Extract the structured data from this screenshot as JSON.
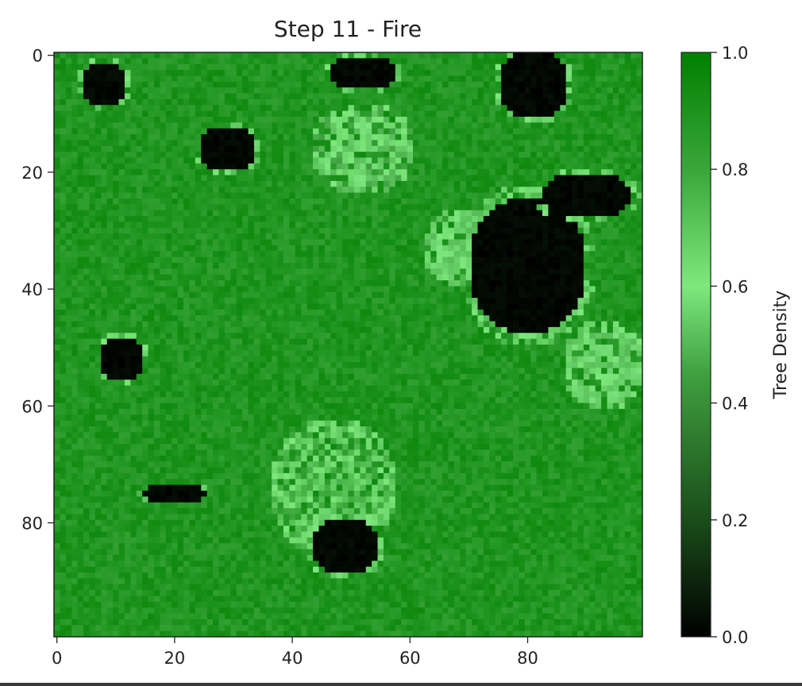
{
  "chart_data": {
    "type": "heatmap",
    "title": "Step 11 - Fire",
    "grid_size": [
      100,
      100
    ],
    "x_range": [
      0,
      99
    ],
    "y_range": [
      0,
      99
    ],
    "y_inverted": true,
    "x_ticks": [
      "0",
      "20",
      "40",
      "60",
      "80"
    ],
    "y_ticks": [
      "0",
      "20",
      "40",
      "60",
      "80"
    ],
    "x_tick_values": [
      0,
      20,
      40,
      60,
      80
    ],
    "y_tick_values": [
      0,
      20,
      40,
      60,
      80
    ],
    "colorbar": {
      "label": "Tree Density",
      "range": [
        0.0,
        1.0
      ],
      "ticks": [
        "0.0",
        "0.2",
        "0.4",
        "0.6",
        "0.8",
        "1.0"
      ],
      "tick_values": [
        0.0,
        0.2,
        0.4,
        0.6,
        0.8,
        1.0
      ],
      "colormap": [
        "#000000",
        "#2e7d2e",
        "#7ee87e",
        "#008000"
      ]
    },
    "base_density": 0.95,
    "burned_regions": [
      {
        "name": "north-west-patch",
        "cx": 8,
        "cy": 5,
        "rx": 4,
        "ry": 4,
        "value": 0.0
      },
      {
        "name": "triangle-burn",
        "cx": 29,
        "cy": 16,
        "rx": 5,
        "ry": 4,
        "value": 0.0
      },
      {
        "name": "top-centre",
        "cx": 52,
        "cy": 3,
        "rx": 6,
        "ry": 3,
        "value": 0.0
      },
      {
        "name": "north-east-patch",
        "cx": 81,
        "cy": 5,
        "rx": 6,
        "ry": 6,
        "value": 0.0
      },
      {
        "name": "large-east-burn",
        "cx": 80,
        "cy": 36,
        "rx": 10,
        "ry": 12,
        "value": 0.0
      },
      {
        "name": "east-arm",
        "cx": 90,
        "cy": 24,
        "rx": 8,
        "ry": 4,
        "value": 0.0
      },
      {
        "name": "west-patch",
        "cx": 11,
        "cy": 52,
        "rx": 4,
        "ry": 4,
        "value": 0.0
      },
      {
        "name": "south-centre",
        "cx": 49,
        "cy": 84,
        "rx": 6,
        "ry": 5,
        "value": 0.0
      },
      {
        "name": "south-west-strip",
        "cx": 20,
        "cy": 75,
        "rx": 6,
        "ry": 1.5,
        "value": 0.0
      }
    ],
    "light_regions": [
      {
        "name": "centre-oval",
        "cx": 47,
        "cy": 74,
        "rx": 11,
        "ry": 12,
        "value": 0.7
      },
      {
        "name": "north-centre",
        "cx": 52,
        "cy": 16,
        "rx": 9,
        "ry": 8,
        "value": 0.55
      },
      {
        "name": "east-light",
        "cx": 93,
        "cy": 53,
        "rx": 7,
        "ry": 8,
        "value": 0.6
      },
      {
        "name": "mid-east",
        "cx": 70,
        "cy": 33,
        "rx": 8,
        "ry": 7,
        "value": 0.6
      }
    ],
    "accent_color": "#008000"
  }
}
